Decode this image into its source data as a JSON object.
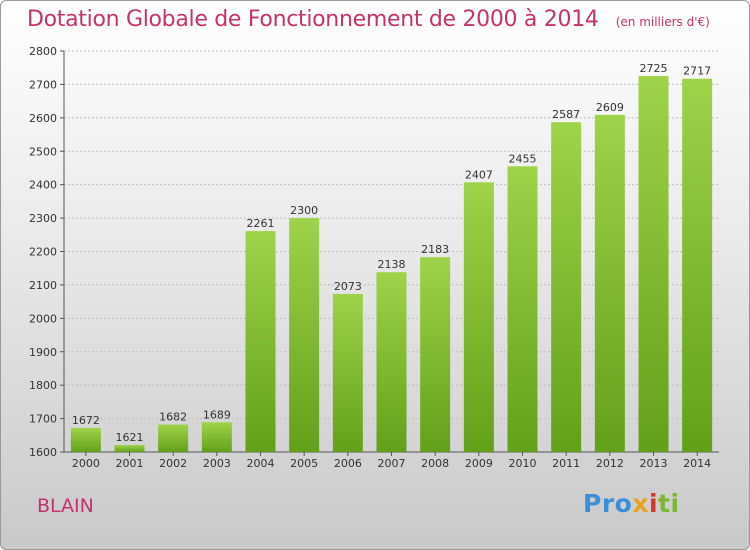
{
  "chart_data": {
    "type": "bar",
    "title": "Dotation Globale de Fonctionnement de 2000 à 2014",
    "subtitle": "(en milliers d'€)",
    "categories": [
      "2000",
      "2001",
      "2002",
      "2003",
      "2004",
      "2005",
      "2006",
      "2007",
      "2008",
      "2009",
      "2010",
      "2011",
      "2012",
      "2013",
      "2014"
    ],
    "values": [
      1672,
      1621,
      1682,
      1689,
      2261,
      2300,
      2073,
      2138,
      2183,
      2407,
      2455,
      2587,
      2609,
      2725,
      2717
    ],
    "ylim": [
      1600,
      2800
    ],
    "yticks": [
      1600,
      1700,
      1800,
      1900,
      2000,
      2100,
      2200,
      2300,
      2400,
      2500,
      2600,
      2700,
      2800
    ],
    "grid": true,
    "bar_color_light": "#9ed34a",
    "bar_color_dark": "#63a01a"
  },
  "footer": {
    "commune": "BLAIN",
    "logo": {
      "p1": "Pro",
      "p2": "x",
      "p3": "i",
      "p4": "ti"
    }
  }
}
